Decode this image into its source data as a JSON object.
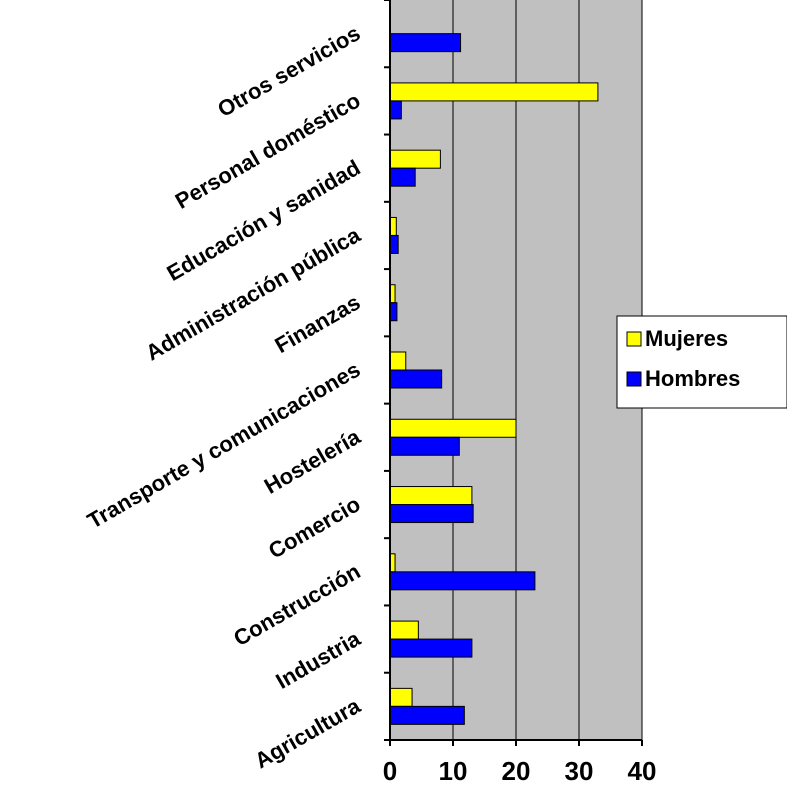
{
  "chart_data": {
    "type": "bar",
    "orientation": "horizontal",
    "title": "",
    "xlabel": "",
    "ylabel": "",
    "xlim": [
      0,
      40
    ],
    "x_ticks": [
      "0",
      "10",
      "20",
      "30",
      "40"
    ],
    "grid": true,
    "legend_position": "right",
    "categories": [
      "Agricultura",
      "Industria",
      "Construcción",
      "Comercio",
      "Hostelería",
      "Transporte y comunicaciones",
      "Finanzas",
      "Administración pública",
      "Educación y sanidad",
      "Personal doméstico",
      "Otros servicios"
    ],
    "series": [
      {
        "name": "Mujeres",
        "color": "#ffff00",
        "values": [
          3.5,
          4.5,
          0.8,
          13,
          20,
          2.5,
          0.8,
          1,
          8,
          33,
          0
        ]
      },
      {
        "name": "Hombres",
        "color": "#0000ff",
        "values": [
          11.8,
          13,
          23,
          13.2,
          11,
          8.2,
          1.1,
          1.3,
          4,
          1.8,
          11.2
        ]
      }
    ],
    "plot_background": "#c0c0c0"
  }
}
